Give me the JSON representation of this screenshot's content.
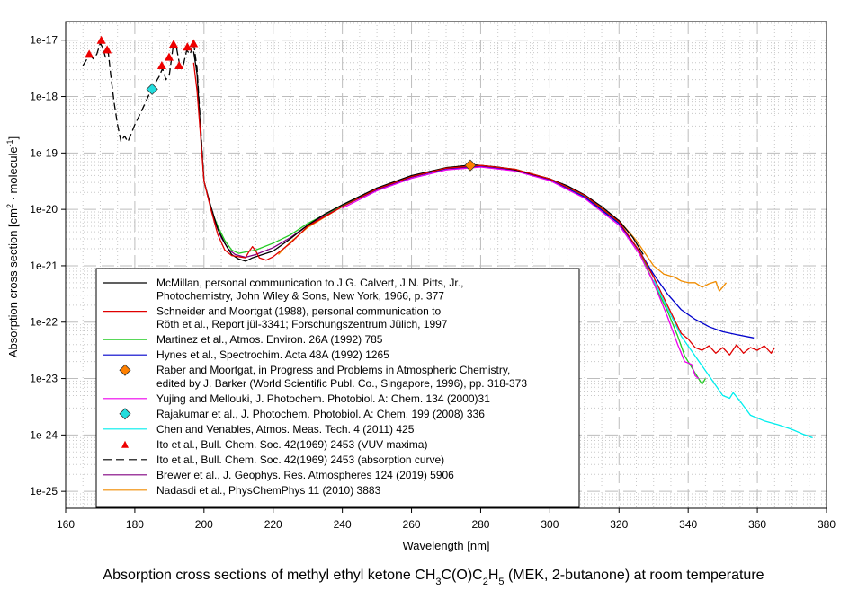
{
  "chart_data": {
    "type": "line",
    "title": "Absorption cross sections of methyl ethyl ketone CH3C(O)C2H5 (MEK, 2-butanone) at room temperature",
    "title_parts": [
      {
        "t": "Absorption cross sections of methyl ethyl ketone CH"
      },
      {
        "t": "3",
        "sub": true
      },
      {
        "t": "C(O)C"
      },
      {
        "t": "2",
        "sub": true
      },
      {
        "t": "H"
      },
      {
        "t": "5",
        "sub": true
      },
      {
        "t": " (MEK, 2-butanone) at room temperature"
      }
    ],
    "xlabel": "Wavelength [nm]",
    "ylabel": "Absorption cross section [cm2 · molecule-1]",
    "ylabel_parts": [
      {
        "t": "Absorption cross section [cm"
      },
      {
        "t": "2",
        "sup": true
      },
      {
        "t": " · molecule"
      },
      {
        "t": "-1",
        "sup": true
      },
      {
        "t": "]"
      }
    ],
    "xlim": [
      160,
      380
    ],
    "ylim_log10": [
      -25.3,
      -16.67
    ],
    "yscale": "log",
    "grid": true,
    "legend_position": "lower-left",
    "x_ticks": [
      160,
      180,
      200,
      220,
      240,
      260,
      280,
      300,
      320,
      340,
      360,
      380
    ],
    "y_ticks": [
      {
        "label": "1e-17",
        "log": -17
      },
      {
        "label": "1e-18",
        "log": -18
      },
      {
        "label": "1e-19",
        "log": -19
      },
      {
        "label": "1e-20",
        "log": -20
      },
      {
        "label": "1e-21",
        "log": -21
      },
      {
        "label": "1e-22",
        "log": -22
      },
      {
        "label": "1e-23",
        "log": -23
      },
      {
        "label": "1e-24",
        "log": -24
      },
      {
        "label": "1e-25",
        "log": -25
      }
    ],
    "series": [
      {
        "name": "McMillan",
        "legend": [
          "McMillan, personal communication to J.G. Calvert, J.N. Pitts, Jr.,",
          "Photochemistry, John Wiley & Sons, New York, 1966, p. 377"
        ],
        "color": "#000000",
        "style": "line",
        "points": [
          [
            197,
            -17.2
          ],
          [
            198,
            -17.6
          ],
          [
            199,
            -18.6
          ],
          [
            200,
            -19.5
          ],
          [
            202,
            -19.95
          ],
          [
            204,
            -20.35
          ],
          [
            206,
            -20.6
          ],
          [
            208,
            -20.8
          ],
          [
            210,
            -20.88
          ],
          [
            212,
            -20.92
          ],
          [
            214,
            -20.86
          ],
          [
            216,
            -20.82
          ],
          [
            220,
            -20.74
          ],
          [
            225,
            -20.52
          ],
          [
            230,
            -20.28
          ],
          [
            235,
            -20.08
          ],
          [
            240,
            -19.92
          ],
          [
            250,
            -19.62
          ],
          [
            260,
            -19.4
          ],
          [
            270,
            -19.26
          ],
          [
            278,
            -19.21
          ],
          [
            285,
            -19.25
          ],
          [
            290,
            -19.3
          ],
          [
            300,
            -19.46
          ],
          [
            305,
            -19.58
          ],
          [
            310,
            -19.74
          ],
          [
            315,
            -19.95
          ],
          [
            320,
            -20.2
          ],
          [
            324,
            -20.5
          ],
          [
            327,
            -20.8
          ]
        ]
      },
      {
        "name": "Schneider and Moortgat",
        "legend": [
          "Schneider and Moortgat (1988), personal communication to",
          "Röth et al., Report jül-3341; Forschungszentrum Jülich, 1997"
        ],
        "color": "#e00000",
        "style": "line",
        "points": [
          [
            197,
            -17.4
          ],
          [
            198,
            -17.9
          ],
          [
            199,
            -18.7
          ],
          [
            200,
            -19.5
          ],
          [
            202,
            -20.0
          ],
          [
            204,
            -20.45
          ],
          [
            206,
            -20.72
          ],
          [
            208,
            -20.82
          ],
          [
            210,
            -20.84
          ],
          [
            212,
            -20.86
          ],
          [
            213,
            -20.75
          ],
          [
            214,
            -20.66
          ],
          [
            215,
            -20.74
          ],
          [
            216,
            -20.86
          ],
          [
            218,
            -20.9
          ],
          [
            220,
            -20.84
          ],
          [
            225,
            -20.6
          ],
          [
            230,
            -20.3
          ],
          [
            240,
            -19.95
          ],
          [
            250,
            -19.64
          ],
          [
            260,
            -19.42
          ],
          [
            270,
            -19.27
          ],
          [
            280,
            -19.22
          ],
          [
            290,
            -19.29
          ],
          [
            300,
            -19.46
          ],
          [
            310,
            -19.75
          ],
          [
            320,
            -20.22
          ],
          [
            326,
            -20.75
          ],
          [
            330,
            -21.2
          ],
          [
            334,
            -21.7
          ],
          [
            336,
            -21.95
          ],
          [
            338,
            -22.2
          ],
          [
            340,
            -22.3
          ],
          [
            342,
            -22.45
          ],
          [
            344,
            -22.5
          ],
          [
            346,
            -22.42
          ],
          [
            348,
            -22.55
          ],
          [
            350,
            -22.45
          ],
          [
            352,
            -22.58
          ],
          [
            354,
            -22.4
          ],
          [
            356,
            -22.55
          ],
          [
            358,
            -22.45
          ],
          [
            360,
            -22.5
          ],
          [
            362,
            -22.42
          ],
          [
            364,
            -22.55
          ],
          [
            365,
            -22.45
          ]
        ]
      },
      {
        "name": "Martinez et al.",
        "legend": [
          "Martinez et al., Atmos. Environ. 26A (1992) 785"
        ],
        "color": "#22cc22",
        "style": "line",
        "points": [
          [
            202,
            -20.0
          ],
          [
            204,
            -20.3
          ],
          [
            206,
            -20.55
          ],
          [
            208,
            -20.72
          ],
          [
            210,
            -20.78
          ],
          [
            215,
            -20.72
          ],
          [
            220,
            -20.6
          ],
          [
            225,
            -20.45
          ],
          [
            230,
            -20.25
          ],
          [
            240,
            -19.93
          ],
          [
            250,
            -19.63
          ],
          [
            260,
            -19.41
          ],
          [
            270,
            -19.26
          ],
          [
            280,
            -19.22
          ],
          [
            290,
            -19.29
          ],
          [
            300,
            -19.46
          ],
          [
            310,
            -19.76
          ],
          [
            320,
            -20.23
          ],
          [
            326,
            -20.75
          ],
          [
            330,
            -21.3
          ],
          [
            334,
            -21.8
          ],
          [
            337,
            -22.25
          ],
          [
            339,
            -22.6
          ],
          [
            341,
            -22.8
          ],
          [
            343,
            -23.0
          ],
          [
            344,
            -23.1
          ],
          [
            345,
            -23.0
          ]
        ]
      },
      {
        "name": "Hynes et al.",
        "legend": [
          "Hynes et al., Spectrochim. Acta 48A (1992) 1265"
        ],
        "color": "#0000cc",
        "style": "line",
        "points": [
          [
            240,
            -19.95
          ],
          [
            250,
            -19.65
          ],
          [
            260,
            -19.43
          ],
          [
            270,
            -19.28
          ],
          [
            280,
            -19.24
          ],
          [
            290,
            -19.31
          ],
          [
            300,
            -19.48
          ],
          [
            310,
            -19.78
          ],
          [
            320,
            -20.25
          ],
          [
            326,
            -20.75
          ],
          [
            330,
            -21.15
          ],
          [
            334,
            -21.5
          ],
          [
            338,
            -21.78
          ],
          [
            342,
            -21.95
          ],
          [
            346,
            -22.08
          ],
          [
            350,
            -22.17
          ],
          [
            354,
            -22.22
          ],
          [
            359,
            -22.28
          ]
        ]
      },
      {
        "name": "Raber and Moortgat",
        "legend": [
          "Raber and Moortgat, in Progress and Problems in Atmospheric Chemistry,",
          "edited by J. Barker (World Scientific Publ. Co., Singapore, 1996), pp. 318-373"
        ],
        "color": "#ff8000",
        "style": "diamond",
        "points": [
          [
            277,
            -19.22
          ]
        ]
      },
      {
        "name": "Yujing and Mellouki",
        "legend": [
          "Yujing and Mellouki, J. Photochem. Photobiol. A: Chem. 134 (2000)31"
        ],
        "color": "#ee00ee",
        "style": "line",
        "points": [
          [
            240,
            -19.98
          ],
          [
            250,
            -19.67
          ],
          [
            260,
            -19.45
          ],
          [
            270,
            -19.3
          ],
          [
            280,
            -19.25
          ],
          [
            290,
            -19.32
          ],
          [
            300,
            -19.49
          ],
          [
            310,
            -19.8
          ],
          [
            320,
            -20.28
          ],
          [
            326,
            -20.8
          ],
          [
            330,
            -21.3
          ],
          [
            334,
            -21.9
          ],
          [
            337,
            -22.4
          ],
          [
            339,
            -22.7
          ],
          [
            341,
            -22.75
          ],
          [
            342,
            -22.95
          ],
          [
            343,
            -23.0
          ]
        ]
      },
      {
        "name": "Rajakumar et al.",
        "legend": [
          "Rajakumar et al., J. Photochem. Photobiol. A: Chem. 199 (2008) 336"
        ],
        "color": "#22dddd",
        "style": "diamond",
        "points": [
          [
            185,
            -17.87
          ]
        ]
      },
      {
        "name": "Chen and Venables",
        "legend": [
          "Chen and Venables, Atmos. Meas. Tech. 4 (2011) 425"
        ],
        "color": "#00eeee",
        "style": "line",
        "points": [
          [
            330,
            -21.25
          ],
          [
            334,
            -21.75
          ],
          [
            338,
            -22.25
          ],
          [
            342,
            -22.6
          ],
          [
            346,
            -22.95
          ],
          [
            350,
            -23.3
          ],
          [
            352,
            -23.35
          ],
          [
            353,
            -23.25
          ],
          [
            355,
            -23.4
          ],
          [
            358,
            -23.65
          ],
          [
            362,
            -23.75
          ],
          [
            366,
            -23.82
          ],
          [
            370,
            -23.9
          ],
          [
            373,
            -23.98
          ],
          [
            376,
            -24.05
          ]
        ]
      },
      {
        "name": "Ito et al. (VUV maxima)",
        "legend": [
          "Ito et al., Bull. Chem. Soc. 42(1969) 2453 (VUV maxima)"
        ],
        "color": "#ee0000",
        "style": "triangle",
        "points": [
          [
            166.8,
            -17.25
          ],
          [
            170.3,
            -17.0
          ],
          [
            172,
            -17.17
          ],
          [
            187.8,
            -17.45
          ],
          [
            189.9,
            -17.3
          ],
          [
            191.2,
            -17.07
          ],
          [
            192.8,
            -17.45
          ],
          [
            195.2,
            -17.12
          ],
          [
            197,
            -17.06
          ]
        ]
      },
      {
        "name": "Ito et al. (absorption curve)",
        "legend": [
          "Ito et al., Bull. Chem. Soc. 42(1969) 2453 (absorption curve)"
        ],
        "color": "#000000",
        "style": "dashed",
        "points": [
          [
            165,
            -17.45
          ],
          [
            166,
            -17.35
          ],
          [
            167,
            -17.27
          ],
          [
            168,
            -17.33
          ],
          [
            169,
            -17.25
          ],
          [
            170,
            -17.05
          ],
          [
            170.8,
            -17.15
          ],
          [
            171.5,
            -17.3
          ],
          [
            172.3,
            -17.2
          ],
          [
            173,
            -17.6
          ],
          [
            174,
            -18.1
          ],
          [
            175,
            -18.5
          ],
          [
            176,
            -18.8
          ],
          [
            177,
            -18.7
          ],
          [
            178,
            -18.8
          ],
          [
            179,
            -18.65
          ],
          [
            180,
            -18.5
          ],
          [
            182,
            -18.25
          ],
          [
            184,
            -17.98
          ],
          [
            185.5,
            -17.8
          ],
          [
            187,
            -17.65
          ],
          [
            188,
            -17.5
          ],
          [
            189,
            -17.7
          ],
          [
            190,
            -17.6
          ],
          [
            191,
            -17.15
          ],
          [
            192,
            -17.12
          ],
          [
            193,
            -17.45
          ],
          [
            194,
            -17.45
          ],
          [
            195,
            -17.18
          ],
          [
            196,
            -17.25
          ],
          [
            197,
            -17.05
          ],
          [
            198,
            -17.5
          ],
          [
            199,
            -18.5
          ],
          [
            200,
            -19.5
          ],
          [
            201,
            -19.75
          ]
        ]
      },
      {
        "name": "Brewer et al.",
        "legend": [
          "Brewer et al., J. Geophys. Res. Atmospheres 124 (2019) 5906"
        ],
        "color": "#800080",
        "style": "line",
        "points": [
          [
            201,
            -19.75
          ],
          [
            203,
            -20.2
          ],
          [
            205,
            -20.5
          ],
          [
            207,
            -20.7
          ],
          [
            209,
            -20.8
          ],
          [
            212,
            -20.85
          ],
          [
            215,
            -20.8
          ],
          [
            220,
            -20.68
          ],
          [
            225,
            -20.5
          ],
          [
            230,
            -20.28
          ],
          [
            240,
            -19.94
          ],
          [
            250,
            -19.64
          ],
          [
            260,
            -19.42
          ],
          [
            270,
            -19.27
          ],
          [
            280,
            -19.23
          ],
          [
            290,
            -19.3
          ],
          [
            300,
            -19.47
          ],
          [
            310,
            -19.77
          ],
          [
            320,
            -20.24
          ],
          [
            326,
            -20.76
          ],
          [
            330,
            -21.2
          ]
        ]
      },
      {
        "name": "Nadasdi et al.",
        "legend": [
          "Nadasdi et al., PhysChemPhys 11 (2010) 3883"
        ],
        "color": "#f08c00",
        "style": "line",
        "points": [
          [
            221.5,
            -20.8
          ],
          [
            223,
            -20.7
          ],
          [
            225,
            -20.58
          ],
          [
            230,
            -20.32
          ],
          [
            240,
            -19.95
          ],
          [
            250,
            -19.64
          ],
          [
            260,
            -19.42
          ],
          [
            270,
            -19.26
          ],
          [
            278,
            -19.21
          ],
          [
            290,
            -19.29
          ],
          [
            300,
            -19.46
          ],
          [
            310,
            -19.75
          ],
          [
            320,
            -20.2
          ],
          [
            325,
            -20.55
          ],
          [
            328,
            -20.82
          ],
          [
            330,
            -21.0
          ],
          [
            333,
            -21.15
          ],
          [
            336,
            -21.2
          ],
          [
            338,
            -21.27
          ],
          [
            340,
            -21.3
          ],
          [
            342,
            -21.3
          ],
          [
            344,
            -21.38
          ],
          [
            346,
            -21.32
          ],
          [
            348,
            -21.28
          ],
          [
            349,
            -21.45
          ],
          [
            350,
            -21.38
          ],
          [
            351,
            -21.3
          ]
        ]
      }
    ]
  }
}
